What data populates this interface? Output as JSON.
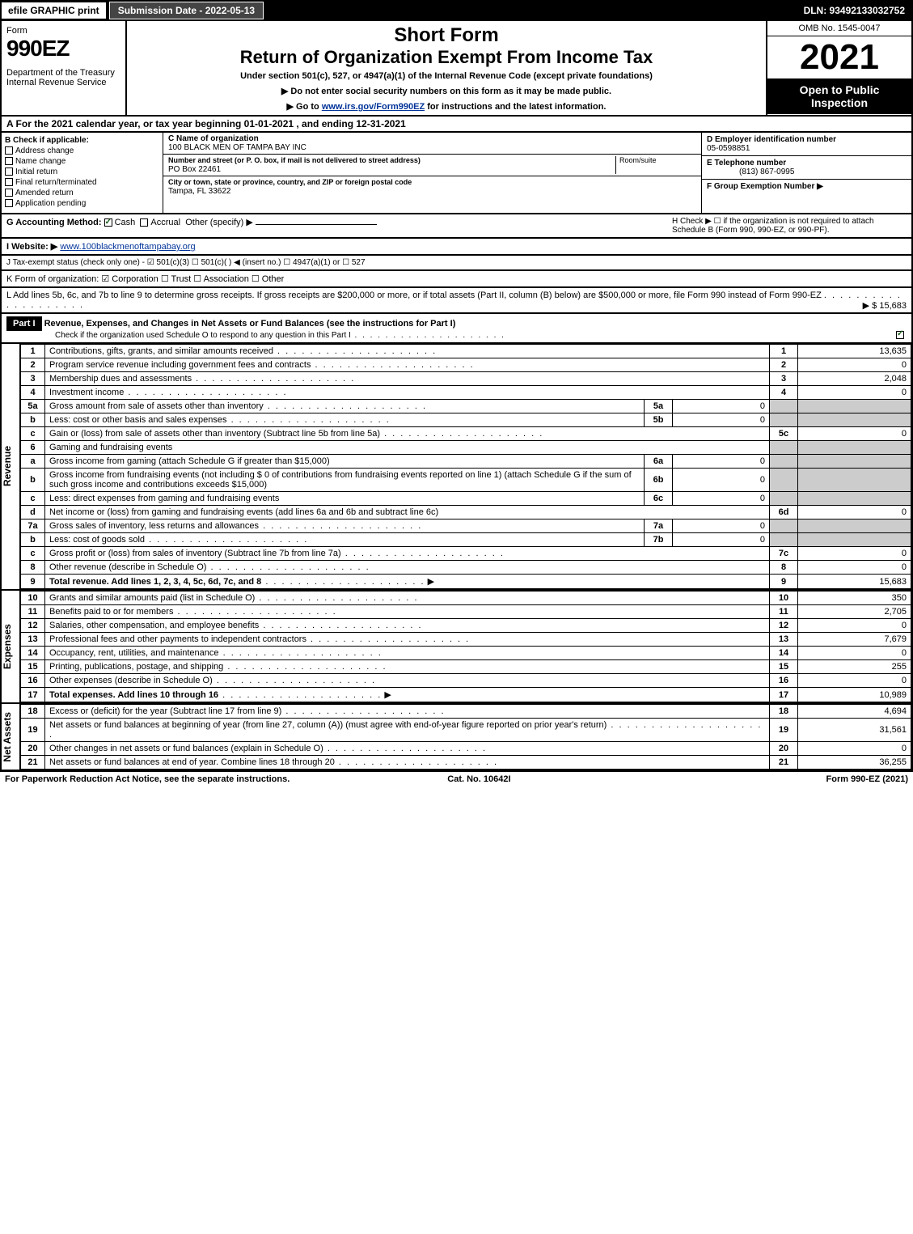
{
  "topbar": {
    "efile": "efile GRAPHIC print",
    "sub_date_label": "Submission Date - 2022-05-13",
    "dln": "DLN: 93492133032752"
  },
  "header": {
    "form_label": "Form",
    "form_number": "990EZ",
    "dept": "Department of the Treasury\nInternal Revenue Service",
    "short_form": "Short Form",
    "return_title": "Return of Organization Exempt From Income Tax",
    "subtitle": "Under section 501(c), 527, or 4947(a)(1) of the Internal Revenue Code (except private foundations)",
    "note1": "▶ Do not enter social security numbers on this form as it may be made public.",
    "note2": "▶ Go to www.irs.gov/Form990EZ for instructions and the latest information.",
    "omb": "OMB No. 1545-0047",
    "year": "2021",
    "inspection": "Open to Public Inspection"
  },
  "section_a": "A  For the 2021 calendar year, or tax year beginning 01-01-2021 , and ending 12-31-2021",
  "b_check": {
    "label": "B  Check if applicable:",
    "addr": "Address change",
    "name": "Name change",
    "init": "Initial return",
    "final": "Final return/terminated",
    "amend": "Amended return",
    "app": "Application pending"
  },
  "c_block": {
    "name_label": "C Name of organization",
    "name": "100 BLACK MEN OF TAMPA BAY INC",
    "addr_label": "Number and street (or P. O. box, if mail is not delivered to street address)",
    "room_label": "Room/suite",
    "addr": "PO Box 22461",
    "city_label": "City or town, state or province, country, and ZIP or foreign postal code",
    "city": "Tampa, FL  33622"
  },
  "d_block": {
    "ein_label": "D Employer identification number",
    "ein": "05-0598851",
    "tel_label": "E Telephone number",
    "tel": "(813) 867-0995",
    "group_label": "F Group Exemption Number  ▶"
  },
  "g_line": {
    "label": "G Accounting Method:",
    "cash": "Cash",
    "accrual": "Accrual",
    "other": "Other (specify) ▶"
  },
  "h_line": "H  Check ▶  ☐  if the organization is not required to attach Schedule B (Form 990, 990-EZ, or 990-PF).",
  "i_line": {
    "label": "I Website: ▶",
    "url": "www.100blackmenoftampabay.org"
  },
  "j_line": "J Tax-exempt status (check only one) - ☑ 501(c)(3)  ☐ 501(c)(  ) ◀ (insert no.)  ☐ 4947(a)(1) or  ☐ 527",
  "k_line": "K Form of organization:  ☑ Corporation  ☐ Trust  ☐ Association  ☐ Other",
  "l_line": {
    "text": "L Add lines 5b, 6c, and 7b to line 9 to determine gross receipts. If gross receipts are $200,000 or more, or if total assets (Part II, column (B) below) are $500,000 or more, file Form 990 instead of Form 990-EZ",
    "amount": "▶ $ 15,683"
  },
  "part1": {
    "label": "Part I",
    "title": "Revenue, Expenses, and Changes in Net Assets or Fund Balances (see the instructions for Part I)",
    "check": "Check if the organization used Schedule O to respond to any question in this Part I"
  },
  "revenue_lines": [
    {
      "num": "1",
      "desc": "Contributions, gifts, grants, and similar amounts received",
      "ref": "1",
      "amt": "13,635"
    },
    {
      "num": "2",
      "desc": "Program service revenue including government fees and contracts",
      "ref": "2",
      "amt": "0"
    },
    {
      "num": "3",
      "desc": "Membership dues and assessments",
      "ref": "3",
      "amt": "2,048"
    },
    {
      "num": "4",
      "desc": "Investment income",
      "ref": "4",
      "amt": "0"
    }
  ],
  "line5": {
    "a_desc": "Gross amount from sale of assets other than inventory",
    "a_ref": "5a",
    "a_val": "0",
    "b_desc": "Less: cost or other basis and sales expenses",
    "b_ref": "5b",
    "b_val": "0",
    "c_desc": "Gain or (loss) from sale of assets other than inventory (Subtract line 5b from line 5a)",
    "c_ref": "5c",
    "c_amt": "0"
  },
  "line6": {
    "head": "Gaming and fundraising events",
    "a_desc": "Gross income from gaming (attach Schedule G if greater than $15,000)",
    "a_ref": "6a",
    "a_val": "0",
    "b_desc": "Gross income from fundraising events (not including $  0          of contributions from fundraising events reported on line 1) (attach Schedule G if the sum of such gross income and contributions exceeds $15,000)",
    "b_ref": "6b",
    "b_val": "0",
    "c_desc": "Less: direct expenses from gaming and fundraising events",
    "c_ref": "6c",
    "c_val": "0",
    "d_desc": "Net income or (loss) from gaming and fundraising events (add lines 6a and 6b and subtract line 6c)",
    "d_ref": "6d",
    "d_amt": "0"
  },
  "line7": {
    "a_desc": "Gross sales of inventory, less returns and allowances",
    "a_ref": "7a",
    "a_val": "0",
    "b_desc": "Less: cost of goods sold",
    "b_ref": "7b",
    "b_val": "0",
    "c_desc": "Gross profit or (loss) from sales of inventory (Subtract line 7b from line 7a)",
    "c_ref": "7c",
    "c_amt": "0"
  },
  "line8": {
    "desc": "Other revenue (describe in Schedule O)",
    "ref": "8",
    "amt": "0"
  },
  "line9": {
    "desc": "Total revenue. Add lines 1, 2, 3, 4, 5c, 6d, 7c, and 8",
    "ref": "9",
    "amt": "15,683"
  },
  "expense_lines": [
    {
      "num": "10",
      "desc": "Grants and similar amounts paid (list in Schedule O)",
      "ref": "10",
      "amt": "350"
    },
    {
      "num": "11",
      "desc": "Benefits paid to or for members",
      "ref": "11",
      "amt": "2,705"
    },
    {
      "num": "12",
      "desc": "Salaries, other compensation, and employee benefits",
      "ref": "12",
      "amt": "0"
    },
    {
      "num": "13",
      "desc": "Professional fees and other payments to independent contractors",
      "ref": "13",
      "amt": "7,679"
    },
    {
      "num": "14",
      "desc": "Occupancy, rent, utilities, and maintenance",
      "ref": "14",
      "amt": "0"
    },
    {
      "num": "15",
      "desc": "Printing, publications, postage, and shipping",
      "ref": "15",
      "amt": "255"
    },
    {
      "num": "16",
      "desc": "Other expenses (describe in Schedule O)",
      "ref": "16",
      "amt": "0"
    },
    {
      "num": "17",
      "desc": "Total expenses. Add lines 10 through 16",
      "ref": "17",
      "amt": "10,989",
      "bold": true
    }
  ],
  "netasset_lines": [
    {
      "num": "18",
      "desc": "Excess or (deficit) for the year (Subtract line 17 from line 9)",
      "ref": "18",
      "amt": "4,694"
    },
    {
      "num": "19",
      "desc": "Net assets or fund balances at beginning of year (from line 27, column (A)) (must agree with end-of-year figure reported on prior year's return)",
      "ref": "19",
      "amt": "31,561"
    },
    {
      "num": "20",
      "desc": "Other changes in net assets or fund balances (explain in Schedule O)",
      "ref": "20",
      "amt": "0"
    },
    {
      "num": "21",
      "desc": "Net assets or fund balances at end of year. Combine lines 18 through 20",
      "ref": "21",
      "amt": "36,255"
    }
  ],
  "section_labels": {
    "revenue": "Revenue",
    "expenses": "Expenses",
    "netassets": "Net Assets"
  },
  "footer": {
    "left": "For Paperwork Reduction Act Notice, see the separate instructions.",
    "center": "Cat. No. 10642I",
    "right": "Form 990-EZ (2021)"
  },
  "line_nums": {
    "n5a": "5a",
    "n5b": "b",
    "n5c": "c",
    "n6": "6",
    "n6a": "a",
    "n6b": "b",
    "n6c": "c",
    "n6d": "d",
    "n7a": "7a",
    "n7b": "b",
    "n7c": "c",
    "n8": "8",
    "n9": "9"
  }
}
